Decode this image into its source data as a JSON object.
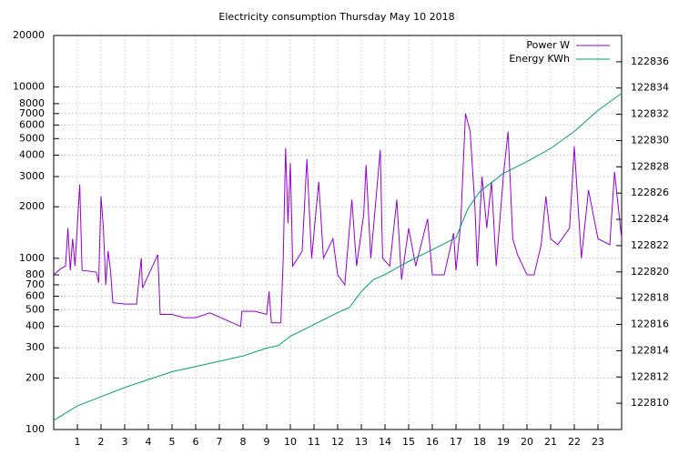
{
  "chart_data": {
    "type": "line",
    "title": "Electricity consumption Thursday May 10 2018",
    "xlim": [
      0,
      24
    ],
    "xticks": [
      1,
      2,
      3,
      4,
      5,
      6,
      7,
      8,
      9,
      10,
      11,
      12,
      13,
      14,
      15,
      16,
      17,
      18,
      19,
      20,
      21,
      22,
      23
    ],
    "ylim": [
      100,
      20000
    ],
    "yscale": "log",
    "yticks": [
      100,
      200,
      300,
      400,
      500,
      600,
      700,
      800,
      1000,
      2000,
      3000,
      4000,
      5000,
      6000,
      7000,
      8000,
      10000,
      20000
    ],
    "y2lim": [
      122808,
      122838
    ],
    "y2ticks": [
      122810,
      122812,
      122814,
      122816,
      122818,
      122820,
      122822,
      122824,
      122826,
      122828,
      122830,
      122832,
      122834,
      122836
    ],
    "grid": true,
    "legend": "top-right",
    "series": [
      {
        "name": "Power W",
        "color": "#9400d3",
        "x": [
          0,
          0.3,
          0.5,
          0.6,
          0.7,
          0.8,
          0.9,
          1.1,
          1.2,
          1.8,
          1.9,
          2.0,
          2.1,
          2.2,
          2.3,
          2.4,
          2.5,
          3.0,
          3.5,
          3.7,
          3.75,
          4.4,
          4.5,
          5.0,
          5.5,
          6.0,
          6.6,
          7.9,
          7.95,
          8.5,
          9.0,
          9.1,
          9.2,
          9.6,
          9.7,
          9.8,
          9.9,
          10.0,
          10.1,
          10.5,
          10.7,
          10.9,
          11.2,
          11.4,
          11.8,
          12.0,
          12.3,
          12.6,
          12.8,
          13.1,
          13.2,
          13.4,
          13.8,
          13.9,
          14.2,
          14.5,
          14.7,
          15.0,
          15.3,
          15.8,
          16.0,
          16.5,
          16.9,
          17.0,
          17.2,
          17.4,
          17.6,
          17.8,
          17.9,
          18.1,
          18.3,
          18.5,
          18.7,
          19.0,
          19.2,
          19.4,
          19.6,
          20.0,
          20.3,
          20.6,
          20.8,
          21.0,
          21.3,
          21.8,
          22.0,
          22.3,
          22.6,
          23.0,
          23.5,
          23.7,
          24.0
        ],
        "values": [
          800,
          870,
          900,
          1500,
          850,
          1300,
          900,
          2700,
          850,
          830,
          720,
          2300,
          1500,
          700,
          1100,
          850,
          550,
          540,
          540,
          1000,
          670,
          1050,
          470,
          470,
          450,
          450,
          480,
          400,
          490,
          490,
          470,
          640,
          420,
          420,
          1000,
          4400,
          1600,
          3600,
          900,
          1100,
          3800,
          1000,
          2800,
          1000,
          1300,
          800,
          700,
          2200,
          900,
          1800,
          3500,
          1000,
          4300,
          1000,
          900,
          2200,
          750,
          1500,
          900,
          1700,
          800,
          800,
          1400,
          850,
          1600,
          7000,
          5500,
          2000,
          900,
          3000,
          1500,
          2800,
          900,
          3000,
          5500,
          1300,
          1050,
          800,
          800,
          1200,
          2300,
          1300,
          1200,
          1500,
          4500,
          1000,
          2500,
          1300,
          1200,
          3200,
          1300
        ]
      },
      {
        "name": "Energy KWh",
        "color": "#009e73",
        "axis": "y2",
        "x": [
          0,
          1,
          2,
          3,
          4,
          5,
          6,
          7,
          8,
          9,
          9.5,
          10,
          11,
          12,
          12.5,
          13,
          13.5,
          14,
          15,
          16,
          17,
          17.5,
          18,
          19,
          20,
          21,
          22,
          23,
          24
        ],
        "values": [
          122808.7,
          122809.8,
          122810.5,
          122811.2,
          122811.8,
          122812.4,
          122812.8,
          122813.2,
          122813.6,
          122814.2,
          122814.4,
          122815.1,
          122816,
          122816.9,
          122817.3,
          122818.5,
          122819.4,
          122819.8,
          122820.8,
          122821.7,
          122822.6,
          122824.8,
          122826.1,
          122827.5,
          122828.4,
          122829.4,
          122830.7,
          122832.3,
          122833.6
        ]
      }
    ]
  }
}
